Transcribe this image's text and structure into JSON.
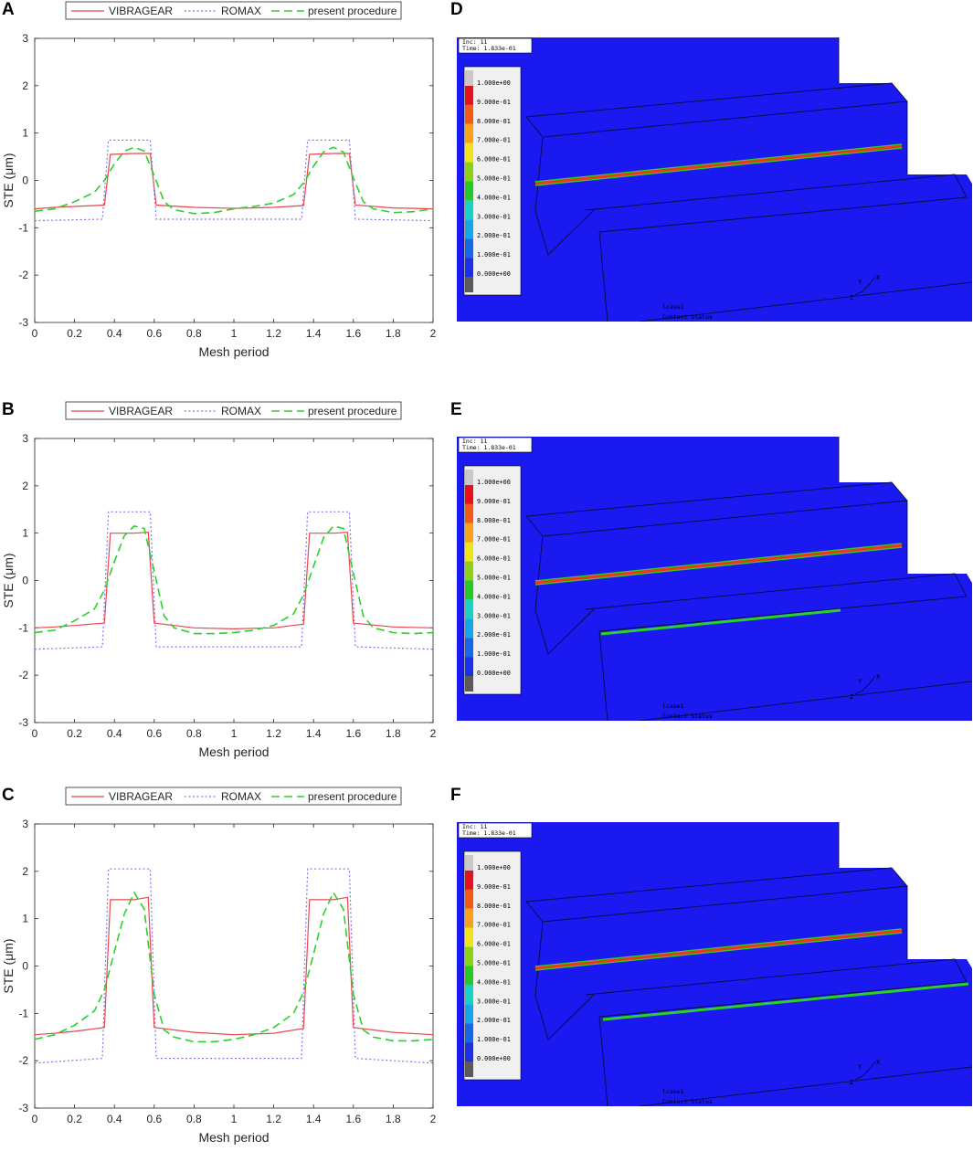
{
  "panels": {
    "A": "A",
    "B": "B",
    "C": "C",
    "D": "D",
    "E": "E",
    "F": "F"
  },
  "colors": {
    "vibragear": "#e8474f",
    "romax": "#7b7bef",
    "present": "#2bd12b",
    "fea_background": "#1919f0",
    "fea_contact_line": "#e83a1a"
  },
  "chart_data": [
    {
      "type": "line",
      "panel": "A",
      "xlabel": "Mesh period",
      "ylabel": "STE (μm)",
      "xlim": [
        0,
        2
      ],
      "ylim": [
        -3,
        3
      ],
      "xticks": [
        "0",
        "0.2",
        "0.4",
        "0.6",
        "0.8",
        "1",
        "1.2",
        "1.4",
        "1.6",
        "1.8",
        "2"
      ],
      "yticks": [
        "3",
        "2",
        "1",
        "0",
        "-1",
        "-2",
        "-3"
      ],
      "grid": false,
      "legend_position": "top",
      "series": [
        {
          "name": "VIBRAGEAR",
          "style": "solid",
          "x": [
            0,
            0.1,
            0.2,
            0.35,
            0.38,
            0.5,
            0.58,
            0.61,
            0.8,
            1.0,
            1.2,
            1.35,
            1.38,
            1.5,
            1.58,
            1.61,
            1.8,
            2.0
          ],
          "y": [
            -0.6,
            -0.57,
            -0.55,
            -0.52,
            0.55,
            0.57,
            0.57,
            -0.52,
            -0.57,
            -0.59,
            -0.57,
            -0.53,
            0.55,
            0.57,
            0.57,
            -0.52,
            -0.58,
            -0.6
          ]
        },
        {
          "name": "ROMAX",
          "style": "dotted",
          "x": [
            0,
            0.34,
            0.37,
            0.58,
            0.61,
            1.34,
            1.37,
            1.58,
            1.61,
            2.0
          ],
          "y": [
            -0.85,
            -0.82,
            0.85,
            0.85,
            -0.82,
            -0.82,
            0.85,
            0.85,
            -0.82,
            -0.85
          ]
        },
        {
          "name": "present procedure",
          "style": "dashed",
          "x": [
            0,
            0.1,
            0.2,
            0.3,
            0.35,
            0.4,
            0.45,
            0.5,
            0.55,
            0.6,
            0.65,
            0.7,
            0.8,
            0.9,
            1.0,
            1.1,
            1.2,
            1.3,
            1.35,
            1.4,
            1.45,
            1.5,
            1.55,
            1.6,
            1.65,
            1.7,
            1.8,
            1.9,
            2.0
          ],
          "y": [
            -0.65,
            -0.6,
            -0.45,
            -0.25,
            0.0,
            0.35,
            0.62,
            0.7,
            0.62,
            0.1,
            -0.45,
            -0.62,
            -0.7,
            -0.68,
            -0.6,
            -0.55,
            -0.48,
            -0.3,
            -0.05,
            0.3,
            0.6,
            0.7,
            0.6,
            0.05,
            -0.45,
            -0.6,
            -0.68,
            -0.66,
            -0.6
          ]
        }
      ]
    },
    {
      "type": "line",
      "panel": "B",
      "xlabel": "Mesh period",
      "ylabel": "STE (μm)",
      "xlim": [
        0,
        2
      ],
      "ylim": [
        -3,
        3
      ],
      "xticks": [
        "0",
        "0.2",
        "0.4",
        "0.6",
        "0.8",
        "1",
        "1.2",
        "1.4",
        "1.6",
        "1.8",
        "2"
      ],
      "yticks": [
        "3",
        "2",
        "1",
        "0",
        "-1",
        "-2",
        "-3"
      ],
      "grid": false,
      "legend_position": "top",
      "series": [
        {
          "name": "VIBRAGEAR",
          "style": "solid",
          "x": [
            0,
            0.1,
            0.2,
            0.35,
            0.38,
            0.5,
            0.57,
            0.6,
            0.8,
            1.0,
            1.2,
            1.35,
            1.38,
            1.5,
            1.57,
            1.6,
            1.8,
            2.0
          ],
          "y": [
            -1.0,
            -0.98,
            -0.95,
            -0.9,
            1.0,
            1.0,
            1.02,
            -0.9,
            -1.0,
            -1.02,
            -1.0,
            -0.92,
            1.0,
            1.0,
            1.02,
            -0.9,
            -0.98,
            -1.0
          ]
        },
        {
          "name": "ROMAX",
          "style": "dotted",
          "x": [
            0,
            0.34,
            0.37,
            0.58,
            0.61,
            1.34,
            1.37,
            1.58,
            1.61,
            2.0
          ],
          "y": [
            -1.45,
            -1.4,
            1.45,
            1.45,
            -1.4,
            -1.4,
            1.45,
            1.45,
            -1.4,
            -1.45
          ]
        },
        {
          "name": "present procedure",
          "style": "dashed",
          "x": [
            0,
            0.1,
            0.2,
            0.3,
            0.35,
            0.4,
            0.45,
            0.5,
            0.55,
            0.6,
            0.65,
            0.7,
            0.8,
            0.9,
            1.0,
            1.1,
            1.2,
            1.3,
            1.35,
            1.4,
            1.45,
            1.5,
            1.55,
            1.6,
            1.65,
            1.7,
            1.8,
            1.9,
            2.0
          ],
          "y": [
            -1.1,
            -1.05,
            -0.85,
            -0.6,
            -0.2,
            0.4,
            0.95,
            1.15,
            1.1,
            0.2,
            -0.75,
            -1.0,
            -1.12,
            -1.12,
            -1.1,
            -1.05,
            -0.95,
            -0.7,
            -0.3,
            0.3,
            0.9,
            1.15,
            1.1,
            0.15,
            -0.75,
            -1.0,
            -1.1,
            -1.12,
            -1.1
          ]
        }
      ]
    },
    {
      "type": "line",
      "panel": "C",
      "xlabel": "Mesh period",
      "ylabel": "STE (μm)",
      "xlim": [
        0,
        2
      ],
      "ylim": [
        -3,
        3
      ],
      "xticks": [
        "0",
        "0.2",
        "0.4",
        "0.6",
        "0.8",
        "1",
        "1.2",
        "1.4",
        "1.6",
        "1.8",
        "2"
      ],
      "yticks": [
        "3",
        "2",
        "1",
        "0",
        "-1",
        "-2",
        "-3"
      ],
      "grid": false,
      "legend_position": "top",
      "series": [
        {
          "name": "VIBRAGEAR",
          "style": "solid",
          "x": [
            0,
            0.1,
            0.2,
            0.35,
            0.38,
            0.5,
            0.57,
            0.6,
            0.8,
            1.0,
            1.2,
            1.35,
            1.38,
            1.5,
            1.57,
            1.6,
            1.8,
            2.0
          ],
          "y": [
            -1.45,
            -1.42,
            -1.38,
            -1.3,
            1.4,
            1.4,
            1.45,
            -1.3,
            -1.4,
            -1.45,
            -1.42,
            -1.32,
            1.4,
            1.4,
            1.45,
            -1.3,
            -1.4,
            -1.45
          ]
        },
        {
          "name": "ROMAX",
          "style": "dotted",
          "x": [
            0,
            0.34,
            0.37,
            0.58,
            0.61,
            1.34,
            1.37,
            1.58,
            1.61,
            2.0
          ],
          "y": [
            -2.05,
            -1.95,
            2.05,
            2.05,
            -1.95,
            -1.95,
            2.05,
            2.05,
            -1.95,
            -2.05
          ]
        },
        {
          "name": "present procedure",
          "style": "dashed",
          "x": [
            0,
            0.1,
            0.2,
            0.3,
            0.35,
            0.4,
            0.45,
            0.5,
            0.55,
            0.6,
            0.65,
            0.7,
            0.8,
            0.9,
            1.0,
            1.1,
            1.2,
            1.3,
            1.35,
            1.4,
            1.45,
            1.5,
            1.55,
            1.6,
            1.65,
            1.7,
            1.8,
            1.9,
            2.0
          ],
          "y": [
            -1.55,
            -1.45,
            -1.25,
            -0.95,
            -0.5,
            0.3,
            1.1,
            1.55,
            1.2,
            -0.6,
            -1.35,
            -1.5,
            -1.6,
            -1.6,
            -1.55,
            -1.45,
            -1.3,
            -1.0,
            -0.55,
            0.25,
            1.1,
            1.55,
            1.2,
            -0.6,
            -1.35,
            -1.5,
            -1.58,
            -1.58,
            -1.55
          ]
        }
      ]
    }
  ],
  "fea": {
    "inc_label": "Inc:  11",
    "time_label": "Time:  1.833e-01",
    "legend_values": [
      "1.000e+00",
      "9.000e-01",
      "8.000e-01",
      "7.000e-01",
      "6.000e-01",
      "5.000e-01",
      "4.000e-01",
      "3.000e-01",
      "2.000e-01",
      "1.000e-01",
      "0.000e+00"
    ],
    "legend_colors": [
      "#c8c8c8",
      "#e8101a",
      "#f25a1a",
      "#f7a21a",
      "#f2e21a",
      "#8ad21a",
      "#28c828",
      "#18d2c8",
      "#18a6e6",
      "#1868e6",
      "#1a32e6",
      "#5a5a5a"
    ],
    "case_label": "lcase1",
    "status_label": "Contact Status",
    "axis_y": "Y",
    "axis_x": "X",
    "axis_z": "Z"
  }
}
